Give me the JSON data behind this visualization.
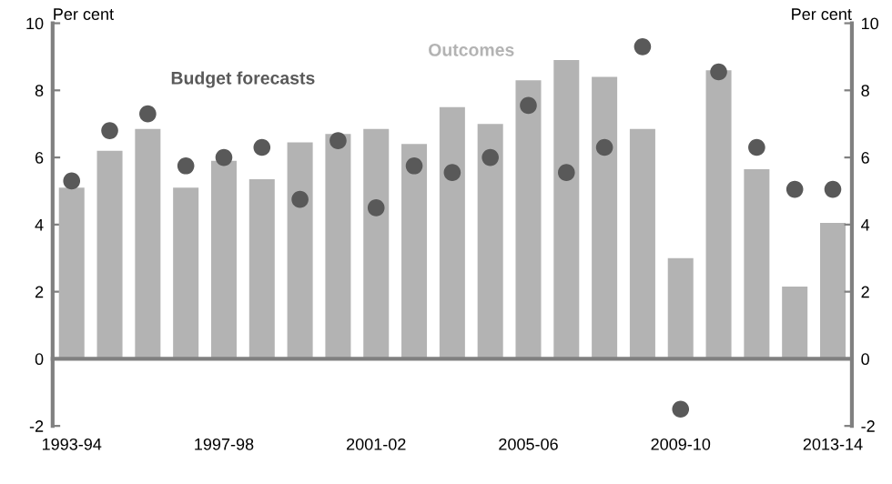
{
  "chart_data": {
    "type": "bar",
    "categories": [
      "1993-94",
      null,
      null,
      null,
      "1997-98",
      null,
      null,
      null,
      "2001-02",
      null,
      null,
      null,
      "2005-06",
      null,
      null,
      null,
      "2009-10",
      null,
      null,
      null,
      "2013-14"
    ],
    "series": [
      {
        "name": "Outcomes",
        "color": "#b3b3b3",
        "values": [
          5.1,
          6.2,
          6.85,
          5.1,
          5.9,
          5.35,
          6.45,
          6.7,
          6.85,
          6.4,
          7.5,
          7.0,
          8.3,
          8.9,
          8.4,
          6.85,
          3.0,
          8.6,
          5.65,
          2.15,
          4.05
        ]
      },
      {
        "name": "Budget forecasts",
        "type": "scatter",
        "color": "#595959",
        "values": [
          5.3,
          6.8,
          7.3,
          5.75,
          6.0,
          6.3,
          4.75,
          6.5,
          4.5,
          5.75,
          5.55,
          6.0,
          7.55,
          5.55,
          6.3,
          9.3,
          -1.5,
          8.55,
          6.3,
          5.05,
          5.05
        ]
      }
    ],
    "ylabel": "Per cent",
    "y2label": "Per cent",
    "ylim": [
      -2,
      10
    ],
    "yticks": [
      -2,
      0,
      2,
      4,
      6,
      8,
      10
    ],
    "y2lim": [
      -2,
      10
    ],
    "y2ticks": [
      -2,
      0,
      2,
      4,
      6,
      8,
      10
    ],
    "marker": "circle"
  }
}
